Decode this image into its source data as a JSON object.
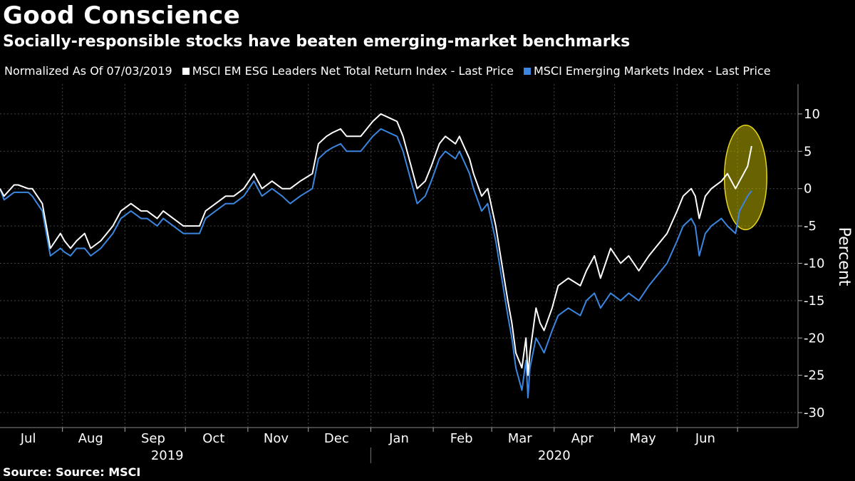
{
  "title": "Good Conscience",
  "subtitle": "Socially-responsible stocks have beaten emerging-market benchmarks",
  "legend_note": "Normalized As Of 07/03/2019",
  "footer": "Source: Source: MSCI",
  "colors": {
    "background": "#000000",
    "esg": "#ffffff",
    "em": "#3b86e0",
    "highlight_fill": "rgba(190,180,0,0.55)",
    "highlight_stroke": "#e6d41a"
  },
  "chart_data": {
    "type": "line",
    "ylabel": "Percent",
    "ylim": [
      -32,
      14
    ],
    "yticks": [
      10,
      5,
      0,
      -5,
      -10,
      -15,
      -20,
      -25,
      -30
    ],
    "xlim": [
      "2019-07-01",
      "2020-07-31"
    ],
    "x_month_ticks": [
      {
        "label": "Jul",
        "date": "2019-07-15"
      },
      {
        "label": "Aug",
        "date": "2019-08-15"
      },
      {
        "label": "Sep",
        "date": "2019-09-15"
      },
      {
        "label": "Oct",
        "date": "2019-10-15"
      },
      {
        "label": "Nov",
        "date": "2019-11-15"
      },
      {
        "label": "Dec",
        "date": "2019-12-15"
      },
      {
        "label": "Jan",
        "date": "2020-01-15"
      },
      {
        "label": "Feb",
        "date": "2020-02-15"
      },
      {
        "label": "Mar",
        "date": "2020-03-15"
      },
      {
        "label": "Apr",
        "date": "2020-04-15"
      },
      {
        "label": "May",
        "date": "2020-05-15"
      },
      {
        "label": "Jun",
        "date": "2020-06-15"
      }
    ],
    "x_year_labels": [
      {
        "label": "2019",
        "date": "2019-09-22"
      },
      {
        "label": "2020",
        "date": "2020-04-01"
      }
    ],
    "year_divider": "2020-01-01",
    "series": [
      {
        "name": "MSCI EM ESG Leaders Net Total Return Index - Last Price",
        "x": [
          "2019-07-01",
          "2019-07-03",
          "2019-07-08",
          "2019-07-10",
          "2019-07-15",
          "2019-07-17",
          "2019-07-22",
          "2019-07-26",
          "2019-07-31",
          "2019-08-02",
          "2019-08-05",
          "2019-08-08",
          "2019-08-12",
          "2019-08-15",
          "2019-08-20",
          "2019-08-23",
          "2019-08-26",
          "2019-08-30",
          "2019-09-04",
          "2019-09-09",
          "2019-09-12",
          "2019-09-17",
          "2019-09-20",
          "2019-09-25",
          "2019-09-30",
          "2019-10-04",
          "2019-10-08",
          "2019-10-11",
          "2019-10-16",
          "2019-10-21",
          "2019-10-25",
          "2019-10-30",
          "2019-11-04",
          "2019-11-08",
          "2019-11-13",
          "2019-11-18",
          "2019-11-22",
          "2019-11-27",
          "2019-12-03",
          "2019-12-06",
          "2019-12-10",
          "2019-12-13",
          "2019-12-17",
          "2019-12-20",
          "2019-12-27",
          "2020-01-02",
          "2020-01-06",
          "2020-01-10",
          "2020-01-14",
          "2020-01-17",
          "2020-01-21",
          "2020-01-24",
          "2020-01-28",
          "2020-01-31",
          "2020-02-04",
          "2020-02-07",
          "2020-02-12",
          "2020-02-14",
          "2020-02-19",
          "2020-02-21",
          "2020-02-25",
          "2020-02-28",
          "2020-03-03",
          "2020-03-06",
          "2020-03-09",
          "2020-03-11",
          "2020-03-13",
          "2020-03-16",
          "2020-03-18",
          "2020-03-19",
          "2020-03-20",
          "2020-03-23",
          "2020-03-25",
          "2020-03-27",
          "2020-03-31",
          "2020-04-03",
          "2020-04-08",
          "2020-04-14",
          "2020-04-17",
          "2020-04-21",
          "2020-04-24",
          "2020-04-29",
          "2020-05-04",
          "2020-05-08",
          "2020-05-13",
          "2020-05-18",
          "2020-05-21",
          "2020-05-27",
          "2020-06-01",
          "2020-06-04",
          "2020-06-08",
          "2020-06-10",
          "2020-06-12",
          "2020-06-15",
          "2020-06-18",
          "2020-06-23",
          "2020-06-26",
          "2020-06-30",
          "2020-07-02",
          "2020-07-06",
          "2020-07-08"
        ],
        "y": [
          0,
          -1,
          0.5,
          0.5,
          0,
          0,
          -2,
          -8,
          -6,
          -7,
          -8,
          -7,
          -6,
          -8,
          -7,
          -6,
          -5,
          -3,
          -2,
          -3,
          -3,
          -4,
          -3,
          -4,
          -5,
          -5,
          -5,
          -3,
          -2,
          -1,
          -1,
          0,
          2,
          0,
          1,
          0,
          0,
          1,
          2,
          6,
          7,
          7.5,
          8,
          7,
          7,
          9,
          10,
          9.5,
          9,
          7,
          3,
          0,
          1,
          3,
          6,
          7,
          6,
          7,
          4,
          2,
          -1,
          0,
          -5,
          -10,
          -15,
          -18,
          -22,
          -24,
          -20,
          -25,
          -22,
          -16,
          -18,
          -19,
          -16,
          -13,
          -12,
          -13,
          -11,
          -9,
          -12,
          -8,
          -10,
          -9,
          -11,
          -9,
          -8,
          -6,
          -3,
          -1,
          0,
          -1,
          -4,
          -1,
          0,
          1,
          2,
          0,
          1,
          3,
          5.7
        ]
      },
      {
        "name": "MSCI Emerging Markets Index - Last Price",
        "x": [
          "2019-07-01",
          "2019-07-03",
          "2019-07-08",
          "2019-07-10",
          "2019-07-15",
          "2019-07-17",
          "2019-07-22",
          "2019-07-26",
          "2019-07-31",
          "2019-08-02",
          "2019-08-05",
          "2019-08-08",
          "2019-08-12",
          "2019-08-15",
          "2019-08-20",
          "2019-08-23",
          "2019-08-26",
          "2019-08-30",
          "2019-09-04",
          "2019-09-09",
          "2019-09-12",
          "2019-09-17",
          "2019-09-20",
          "2019-09-25",
          "2019-09-30",
          "2019-10-04",
          "2019-10-08",
          "2019-10-11",
          "2019-10-16",
          "2019-10-21",
          "2019-10-25",
          "2019-10-30",
          "2019-11-04",
          "2019-11-08",
          "2019-11-13",
          "2019-11-18",
          "2019-11-22",
          "2019-11-27",
          "2019-12-03",
          "2019-12-06",
          "2019-12-10",
          "2019-12-13",
          "2019-12-17",
          "2019-12-20",
          "2019-12-27",
          "2020-01-02",
          "2020-01-06",
          "2020-01-10",
          "2020-01-14",
          "2020-01-17",
          "2020-01-21",
          "2020-01-24",
          "2020-01-28",
          "2020-01-31",
          "2020-02-04",
          "2020-02-07",
          "2020-02-12",
          "2020-02-14",
          "2020-02-19",
          "2020-02-21",
          "2020-02-25",
          "2020-02-28",
          "2020-03-03",
          "2020-03-06",
          "2020-03-09",
          "2020-03-11",
          "2020-03-13",
          "2020-03-16",
          "2020-03-18",
          "2020-03-19",
          "2020-03-20",
          "2020-03-23",
          "2020-03-25",
          "2020-03-27",
          "2020-03-31",
          "2020-04-03",
          "2020-04-08",
          "2020-04-14",
          "2020-04-17",
          "2020-04-21",
          "2020-04-24",
          "2020-04-29",
          "2020-05-04",
          "2020-05-08",
          "2020-05-13",
          "2020-05-18",
          "2020-05-21",
          "2020-05-27",
          "2020-06-01",
          "2020-06-04",
          "2020-06-08",
          "2020-06-10",
          "2020-06-12",
          "2020-06-15",
          "2020-06-18",
          "2020-06-23",
          "2020-06-26",
          "2020-06-30",
          "2020-07-02",
          "2020-07-06",
          "2020-07-08"
        ],
        "y": [
          0,
          -1.5,
          -0.5,
          -0.5,
          -0.5,
          -1,
          -3,
          -9,
          -8,
          -8.5,
          -9,
          -8,
          -8,
          -9,
          -8,
          -7,
          -6,
          -4,
          -3,
          -4,
          -4,
          -5,
          -4,
          -5,
          -6,
          -6,
          -6,
          -4,
          -3,
          -2,
          -2,
          -1,
          1,
          -1,
          0,
          -1,
          -2,
          -1,
          0,
          4,
          5,
          5.5,
          6,
          5,
          5,
          7,
          8,
          7.5,
          7,
          5,
          1,
          -2,
          -1,
          1,
          4,
          5,
          4,
          5,
          2,
          0,
          -3,
          -2,
          -7,
          -12,
          -17,
          -20,
          -24,
          -27,
          -23,
          -28,
          -24,
          -20,
          -21,
          -22,
          -19,
          -17,
          -16,
          -17,
          -15,
          -14,
          -16,
          -14,
          -15,
          -14,
          -15,
          -13,
          -12,
          -10,
          -7,
          -5,
          -4,
          -5,
          -9,
          -6,
          -5,
          -4,
          -5,
          -6,
          -3,
          -1,
          -0.3
        ]
      }
    ],
    "annotation": {
      "type": "ellipse",
      "x_from": "2020-06-28",
      "x_to": "2020-07-12",
      "y_from": -5.5,
      "y_to": 8.5
    }
  }
}
